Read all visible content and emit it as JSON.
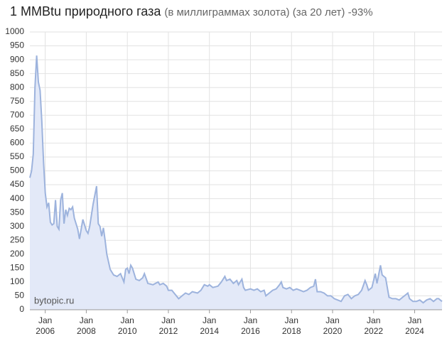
{
  "chart_data": {
    "type": "area",
    "title": "1 MMBtu природного газа",
    "subtitle": "(в миллиграммах золота) (за 20 лет) -93%",
    "watermark": "bytopic.ru",
    "color": "#9db3dd",
    "fill": "#e3e9f8",
    "grid": true,
    "xlim": [
      "2005-04",
      "2025-05"
    ],
    "xticks": [
      {
        "value": "2006-01",
        "label": "Jan 2006"
      },
      {
        "value": "2008-01",
        "label": "Jan 2008"
      },
      {
        "value": "2010-01",
        "label": "Jan 2010"
      },
      {
        "value": "2012-01",
        "label": "Jan 2012"
      },
      {
        "value": "2014-01",
        "label": "Jan 2014"
      },
      {
        "value": "2016-01",
        "label": "Jan 2016"
      },
      {
        "value": "2018-01",
        "label": "Jan 2018"
      },
      {
        "value": "2020-01",
        "label": "Jan 2020"
      },
      {
        "value": "2022-01",
        "label": "Jan 2022"
      },
      {
        "value": "2024-01",
        "label": "Jan 2024"
      }
    ],
    "ylim": [
      0,
      1000
    ],
    "yticks": [
      0,
      50,
      100,
      150,
      200,
      250,
      300,
      350,
      400,
      450,
      500,
      550,
      600,
      650,
      700,
      750,
      800,
      850,
      900,
      950,
      1000
    ],
    "x": [
      "2005-04",
      "2005-05",
      "2005-06",
      "2005-07",
      "2005-08",
      "2005-09",
      "2005-10",
      "2005-11",
      "2005-12",
      "2006-01",
      "2006-02",
      "2006-03",
      "2006-04",
      "2006-05",
      "2006-06",
      "2006-07",
      "2006-08",
      "2006-09",
      "2006-10",
      "2006-11",
      "2006-12",
      "2007-01",
      "2007-02",
      "2007-03",
      "2007-04",
      "2007-05",
      "2007-06",
      "2007-08",
      "2007-09",
      "2007-11",
      "2008-01",
      "2008-02",
      "2008-03",
      "2008-05",
      "2008-07",
      "2008-08",
      "2008-09",
      "2008-10",
      "2008-11",
      "2008-12",
      "2009-01",
      "2009-03",
      "2009-05",
      "2009-07",
      "2009-09",
      "2009-11",
      "2009-12",
      "2010-01",
      "2010-02",
      "2010-03",
      "2010-04",
      "2010-06",
      "2010-08",
      "2010-10",
      "2010-11",
      "2011-01",
      "2011-04",
      "2011-07",
      "2011-08",
      "2011-10",
      "2011-12",
      "2012-01",
      "2012-03",
      "2012-05",
      "2012-07",
      "2012-09",
      "2012-11",
      "2013-01",
      "2013-03",
      "2013-06",
      "2013-08",
      "2013-10",
      "2013-12",
      "2014-01",
      "2014-03",
      "2014-06",
      "2014-08",
      "2014-10",
      "2014-11",
      "2015-01",
      "2015-03",
      "2015-05",
      "2015-06",
      "2015-08",
      "2015-09",
      "2015-10",
      "2016-01",
      "2016-03",
      "2016-05",
      "2016-07",
      "2016-09",
      "2016-10",
      "2016-12",
      "2017-02",
      "2017-04",
      "2017-06",
      "2017-07",
      "2017-08",
      "2017-10",
      "2017-12",
      "2018-02",
      "2018-04",
      "2018-06",
      "2018-08",
      "2018-10",
      "2018-12",
      "2019-02",
      "2019-03",
      "2019-04",
      "2019-06",
      "2019-08",
      "2019-10",
      "2019-12",
      "2020-02",
      "2020-04",
      "2020-06",
      "2020-08",
      "2020-10",
      "2020-12",
      "2021-02",
      "2021-04",
      "2021-06",
      "2021-08",
      "2021-09",
      "2021-10",
      "2021-12",
      "2022-02",
      "2022-03",
      "2022-05",
      "2022-06",
      "2022-08",
      "2022-09",
      "2022-10",
      "2022-12",
      "2023-02",
      "2023-04",
      "2023-06",
      "2023-08",
      "2023-09",
      "2023-10",
      "2023-12",
      "2024-02",
      "2024-04",
      "2024-06",
      "2024-08",
      "2024-10",
      "2024-12",
      "2025-02",
      "2025-03",
      "2025-05"
    ],
    "values": [
      475,
      500,
      560,
      800,
      915,
      820,
      790,
      680,
      530,
      420,
      370,
      385,
      315,
      305,
      310,
      395,
      300,
      290,
      395,
      420,
      310,
      360,
      340,
      365,
      360,
      370,
      330,
      290,
      255,
      325,
      285,
      275,
      300,
      380,
      445,
      310,
      300,
      265,
      295,
      250,
      200,
      145,
      125,
      120,
      130,
      100,
      145,
      150,
      130,
      160,
      150,
      110,
      105,
      115,
      130,
      95,
      90,
      100,
      90,
      95,
      85,
      70,
      70,
      55,
      40,
      50,
      60,
      55,
      65,
      60,
      70,
      90,
      85,
      90,
      80,
      85,
      100,
      120,
      105,
      110,
      95,
      105,
      90,
      110,
      80,
      70,
      75,
      70,
      75,
      65,
      70,
      50,
      60,
      70,
      75,
      90,
      100,
      80,
      75,
      80,
      70,
      75,
      70,
      65,
      70,
      80,
      85,
      110,
      65,
      65,
      60,
      50,
      50,
      40,
      35,
      30,
      50,
      55,
      40,
      50,
      55,
      70,
      105,
      90,
      70,
      80,
      130,
      95,
      160,
      125,
      115,
      80,
      45,
      40,
      40,
      35,
      45,
      55,
      60,
      40,
      30,
      30,
      35,
      25,
      35,
      40,
      30,
      40,
      40,
      30
    ]
  }
}
